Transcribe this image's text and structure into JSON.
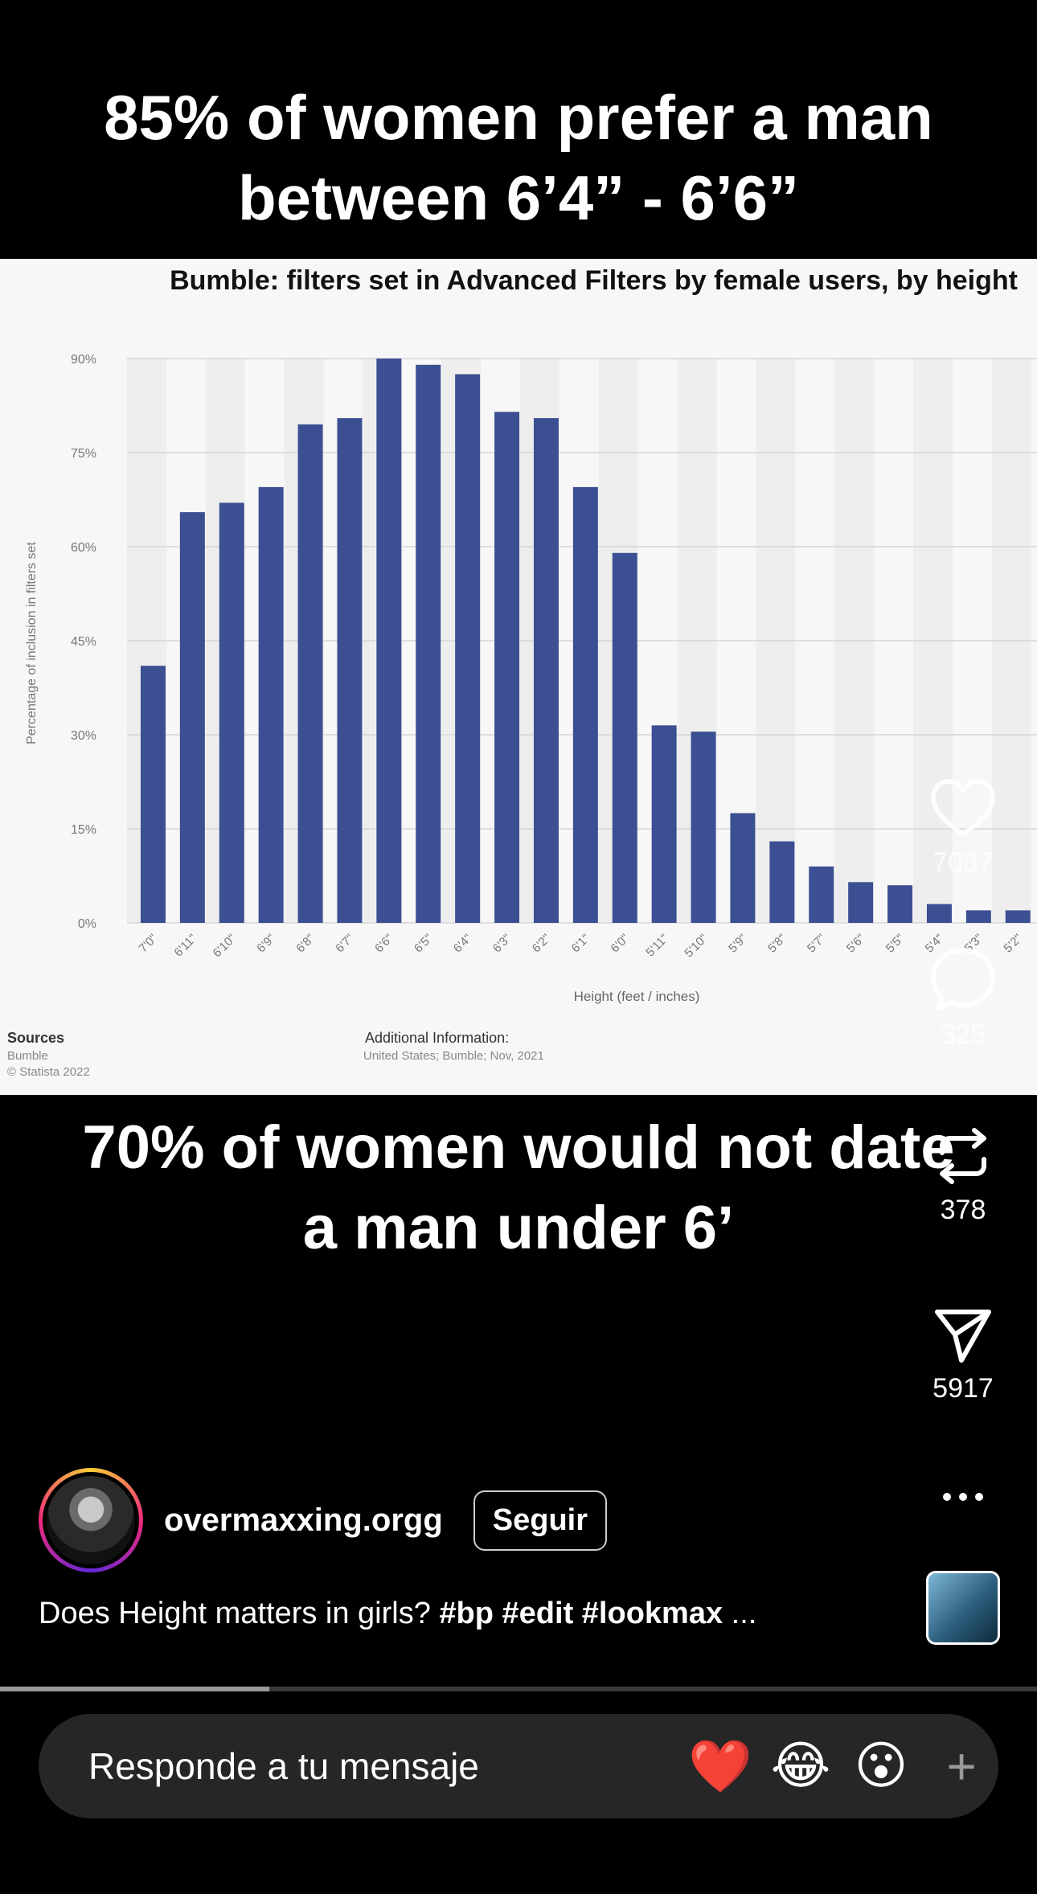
{
  "post": {
    "headline_top_1": "85% of women prefer a man",
    "headline_top_2": "between 6’4”  -  6’6”",
    "headline_bottom_1": "70% of women would not date",
    "headline_bottom_2": "a man under 6’"
  },
  "chart_data": {
    "type": "bar",
    "title": "Bumble: filters set in Advanced Filters by female users, by height",
    "xlabel": "Height (feet / inches)",
    "ylabel": "Percentage of inclusion in filters set",
    "ylim": [
      0,
      90
    ],
    "yticks": [
      "0%",
      "15%",
      "30%",
      "45%",
      "60%",
      "75%",
      "90%"
    ],
    "categories": [
      "7'0\"",
      "6'11\"",
      "6'10\"",
      "6'9\"",
      "6'8\"",
      "6'7\"",
      "6'6\"",
      "6'5\"",
      "6'4\"",
      "6'3\"",
      "6'2\"",
      "6'1\"",
      "6'0\"",
      "5'11\"",
      "5'10\"",
      "5'9\"",
      "5'8\"",
      "5'7\"",
      "5'6\"",
      "5'5\"",
      "5'4\"",
      "5'3\"",
      "5'2\""
    ],
    "values": [
      41,
      65.5,
      67,
      69.5,
      79.5,
      80.5,
      90,
      89,
      87.5,
      81.5,
      80.5,
      69.5,
      59,
      31.5,
      30.5,
      17.5,
      13,
      9,
      6.5,
      6,
      3,
      2,
      2
    ],
    "bar_color": "#3b4f92",
    "sources_label": "Sources",
    "sources": [
      "Bumble",
      "© Statista 2022"
    ],
    "additional_label": "Additional Information:",
    "additional": "United States; Bumble; Nov, 2021"
  },
  "rail": {
    "likes": "7087",
    "comments": "325",
    "reposts": "378",
    "shares": "5917"
  },
  "author": {
    "username": "overmaxxing.orgg",
    "follow_label": "Seguir"
  },
  "caption": {
    "text": "Does Height matters in girls? ",
    "tags": "#bp #edit #lookmax",
    "more": " ..."
  },
  "progress": {
    "fraction": 0.26
  },
  "reply": {
    "placeholder": "Responde a tu mensaje",
    "emoji_1": "❤️",
    "emoji_2": "😂",
    "emoji_3": "😮",
    "plus": "+"
  },
  "icons": {
    "like": "heart-icon",
    "comment": "comment-bubble-icon",
    "repost": "repost-icon",
    "share": "send-icon",
    "more": "more-dots-icon"
  }
}
